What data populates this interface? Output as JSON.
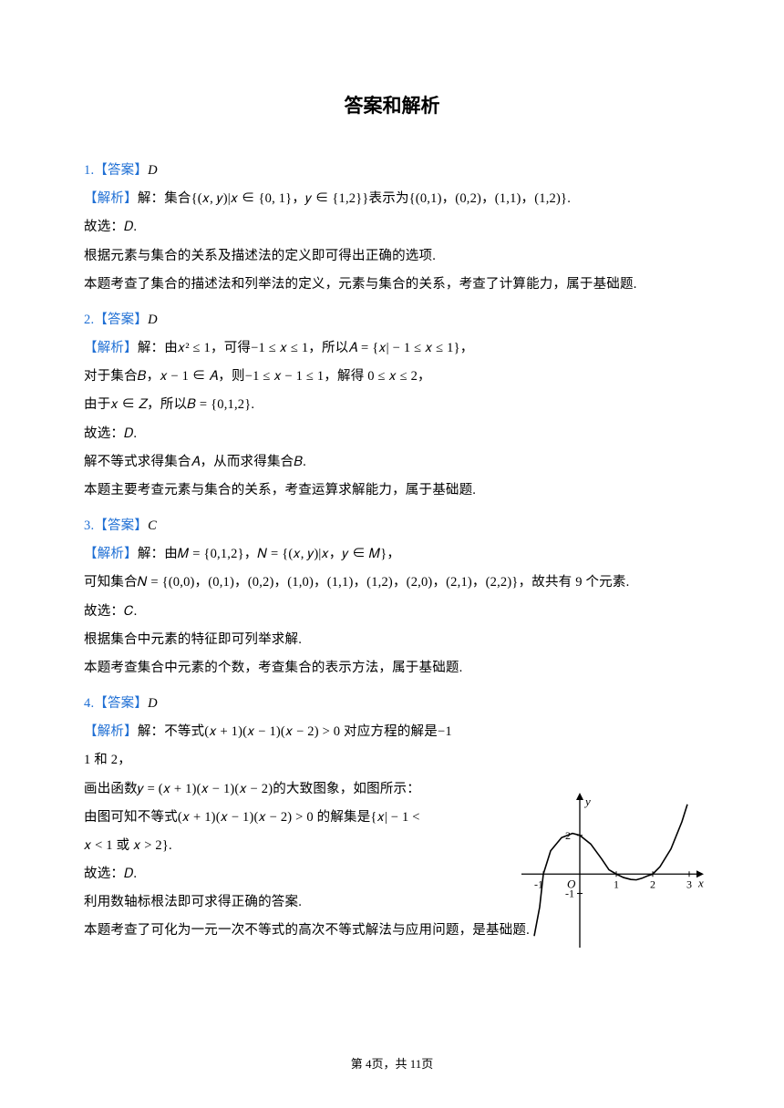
{
  "title": "答案和解析",
  "q1": {
    "num": "1.",
    "answerLabel": "【答案】",
    "answer": "D",
    "jiexiLabel": "【解析】",
    "l1": "解：集合{(𝑥, 𝑦)|𝑥 ∈ {0,  1}，𝑦 ∈ {1,2}}表示为{(0,1)，(0,2)，(1,1)，(1,2)}.",
    "l2": "故选：𝐷.",
    "l3": "根据元素与集合的关系及描述法的定义即可得出正确的选项.",
    "l4": "本题考查了集合的描述法和列举法的定义，元素与集合的关系，考查了计算能力，属于基础题."
  },
  "q2": {
    "num": "2.",
    "answerLabel": "【答案】",
    "answer": "D",
    "jiexiLabel": "【解析】",
    "l1": "解：由𝑥² ≤ 1，可得−1 ≤ 𝑥 ≤ 1，所以𝐴 = {𝑥| − 1 ≤ 𝑥 ≤ 1}，",
    "l2": "对于集合𝐵，𝑥 − 1 ∈ 𝐴，则−1 ≤ 𝑥 − 1 ≤ 1，解得 0 ≤ 𝑥 ≤ 2，",
    "l3": "由于𝑥 ∈ 𝑍，所以𝐵 = {0,1,2}.",
    "l4": "故选：𝐷.",
    "l5": "解不等式求得集合𝐴，从而求得集合𝐵.",
    "l6": "本题主要考查元素与集合的关系，考查运算求解能力，属于基础题."
  },
  "q3": {
    "num": "3.",
    "answerLabel": "【答案】",
    "answer": "C",
    "jiexiLabel": "【解析】",
    "l1": "解：由𝑀 = {0,1,2}，𝑁 = {(𝑥, 𝑦)|𝑥，𝑦 ∈ 𝑀}，",
    "l2": "可知集合𝑁 = {(0,0)，(0,1)，(0,2)，(1,0)，(1,1)，(1,2)，(2,0)，(2,1)，(2,2)}，故共有 9 个元素.",
    "l3": "故选：𝐶.",
    "l4": "根据集合中元素的特征即可列举求解.",
    "l5": "本题考查集合中元素的个数，考查集合的表示方法，属于基础题."
  },
  "q4": {
    "num": "4.",
    "answerLabel": "【答案】",
    "answer": "D",
    "jiexiLabel": "【解析】",
    "l1a": "解：不等式(𝑥 + 1)(𝑥 − 1)(𝑥 − 2) > 0 对应方程的解是−1",
    "l1b": "1 和 2，",
    "l2": "画出函数𝑦 = (𝑥 + 1)(𝑥 − 1)(𝑥 − 2)的大致图象，如图所示：",
    "l3a": "由图可知不等式(𝑥 + 1)(𝑥 − 1)(𝑥 − 2) > 0 的解集是{𝑥| − 1 <",
    "l3b": "𝑥 < 1 或 𝑥 > 2}.",
    "l4": "故选：𝐷.",
    "l5": "利用数轴标根法即可求得正确的答案.",
    "l6": "本题考查了可化为一元一次不等式的高次不等式解法与应用问题，是基础题."
  },
  "footer": {
    "prefix": "第 ",
    "page": "4",
    "mid": "页，共 ",
    "total": "11",
    "suffix": "页"
  },
  "graph": {
    "curve_color": "#000000",
    "axis_color": "#000000",
    "line_width": 1.6,
    "x_ticks": [
      -1,
      1,
      2,
      3
    ],
    "y_ticks": [
      -1,
      2
    ],
    "x_label": "x",
    "y_label": "y",
    "origin_label": "O",
    "curve_points": [
      [
        -1.25,
        -3.2
      ],
      [
        -1.1,
        -1.7
      ],
      [
        -1,
        0
      ],
      [
        -0.8,
        1.2
      ],
      [
        -0.5,
        1.88
      ],
      [
        -0.2,
        2.1
      ],
      [
        0,
        2
      ],
      [
        0.3,
        1.55
      ],
      [
        0.6,
        0.78
      ],
      [
        0.8,
        0.22
      ],
      [
        1,
        0
      ],
      [
        1.2,
        -0.18
      ],
      [
        1.4,
        -0.28
      ],
      [
        1.55,
        -0.3
      ],
      [
        1.7,
        -0.22
      ],
      [
        1.85,
        -0.1
      ],
      [
        2,
        0
      ],
      [
        2.2,
        0.38
      ],
      [
        2.5,
        1.3
      ],
      [
        2.8,
        2.7
      ],
      [
        2.95,
        3.6
      ]
    ]
  }
}
